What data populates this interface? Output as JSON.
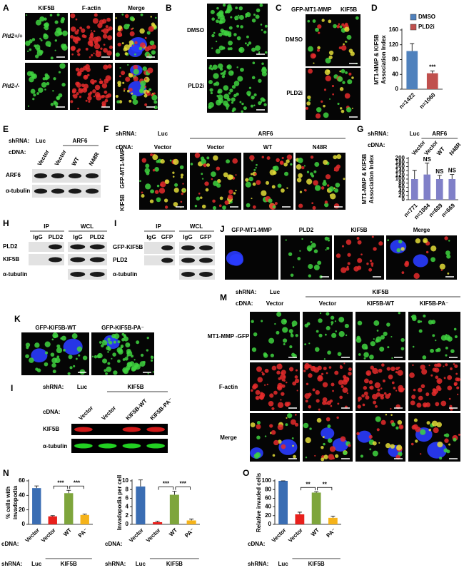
{
  "chart_data": [
    {
      "panel": "D",
      "type": "bar",
      "y_label": [
        "MT1-MMP & KIF5B",
        "Association Index"
      ],
      "categories": [
        "n=1422",
        "n=1060"
      ],
      "values": [
        103,
        43
      ],
      "errors": [
        20,
        6
      ],
      "colors": [
        "#4f81bd",
        "#c0504d"
      ],
      "legend": [
        "DMSO",
        "PLD2i"
      ],
      "ylim": [
        0,
        160
      ],
      "yticks": [
        0,
        40,
        80,
        120,
        160
      ],
      "annotations": [
        {
          "text": "***",
          "bars": [
            1
          ]
        }
      ]
    },
    {
      "panel": "G",
      "type": "bar",
      "y_label": [
        "MT1-MMP & KIF5B",
        "Association Index"
      ],
      "shrna_label": "shRNA:",
      "shrna": [
        "Luc",
        "ARF6"
      ],
      "cdna_label": "cDNA:",
      "cdna": [
        "Vector",
        "Vector",
        "WT",
        "N48R"
      ],
      "categories": [
        "n=771",
        "n=1004",
        "n=689",
        "n=669"
      ],
      "values": [
        100,
        122,
        100,
        100
      ],
      "errors": [
        42,
        55,
        18,
        22
      ],
      "colors": [
        "#8080c8",
        "#8080c8",
        "#8080c8",
        "#8080c8"
      ],
      "ylim": [
        0,
        200
      ],
      "yticks": [
        0,
        20,
        40,
        60,
        80,
        100,
        120,
        140,
        160,
        180,
        200
      ],
      "annotations": [
        {
          "text": "NS",
          "bars": [
            1
          ]
        },
        {
          "text": "NS",
          "bars": [
            2
          ]
        },
        {
          "text": "NS",
          "bars": [
            3
          ]
        }
      ]
    },
    {
      "panel": "N",
      "type": "bar",
      "y_label": [
        "% cells with",
        "invadopodia"
      ],
      "categories": [
        "Vector",
        "Vector",
        "WT",
        "PA⁻"
      ],
      "cdna_label": "cDNA:",
      "shrna_label": "shRNA:",
      "shrna": [
        "Luc",
        "KIF5B"
      ],
      "values": [
        50,
        11,
        43,
        13
      ],
      "errors": [
        3,
        1,
        4,
        1
      ],
      "colors": [
        "#3a6db3",
        "#e8201c",
        "#7ea53c",
        "#f5b31a"
      ],
      "ylim": [
        0,
        60
      ],
      "yticks": [
        0,
        20,
        40,
        60
      ],
      "annotations": [
        {
          "text": "***",
          "bars": [
            1,
            2
          ]
        },
        {
          "text": "***",
          "bars": [
            2,
            3
          ]
        }
      ]
    },
    {
      "type": "bar",
      "y_label": [
        "Invadopodia per cell"
      ],
      "categories": [
        "Vector",
        "Vector",
        "WT",
        "PA⁻"
      ],
      "cdna_label": "cDNA:",
      "shrna_label": "shRNA:",
      "shrna": [
        "Luc",
        "KIF5B"
      ],
      "values": [
        8.7,
        0.5,
        6.8,
        0.9
      ],
      "errors": [
        1.5,
        0.2,
        0.8,
        0.3
      ],
      "colors": [
        "#3a6db3",
        "#e8201c",
        "#7ea53c",
        "#f5b31a"
      ],
      "ylim": [
        0,
        10
      ],
      "yticks": [
        0,
        2,
        4,
        6,
        8,
        10
      ],
      "annotations": [
        {
          "text": "***",
          "bars": [
            1,
            2
          ]
        },
        {
          "text": "***",
          "bars": [
            2,
            3
          ]
        }
      ]
    },
    {
      "panel": "O",
      "type": "bar",
      "y_label": [
        "Relative invaded cells"
      ],
      "categories": [
        "Vector",
        "Vector",
        "WT",
        "PA⁻"
      ],
      "cdna_label": "cDNA:",
      "shrna_label": "shRNA:",
      "shrna": [
        "Luc",
        "KIF5B"
      ],
      "values": [
        100,
        23,
        73,
        15
      ],
      "errors": [
        0,
        5,
        2,
        4
      ],
      "colors": [
        "#3a6db3",
        "#e8201c",
        "#7ea53c",
        "#f5b31a"
      ],
      "ylim": [
        0,
        100
      ],
      "yticks": [
        0,
        20,
        40,
        60,
        80,
        100
      ],
      "annotations": [
        {
          "text": "**",
          "bars": [
            1,
            2
          ]
        },
        {
          "text": "**",
          "bars": [
            2,
            3
          ]
        }
      ]
    }
  ],
  "panels": {
    "A": {
      "label": "A",
      "columns": [
        "KIF5B",
        "F-actin",
        "Merge"
      ],
      "rows": [
        "Pld2+/+",
        "Pld2-/-"
      ]
    },
    "B": {
      "label": "B",
      "rows": [
        "DMSO",
        "PLD2i"
      ]
    },
    "C": {
      "label": "C",
      "channels": [
        "GFP-MT1-MMP",
        "KIF5B"
      ],
      "rows": [
        "DMSO",
        "PLD2i"
      ]
    },
    "E": {
      "label": "E",
      "shrna_label": "shRNA:",
      "shrna": [
        "Luc",
        "ARF6"
      ],
      "cdna_label": "cDNA:",
      "cdna": [
        "Vector",
        "Vector",
        "WT",
        "N48R"
      ],
      "blots": [
        "ARF6",
        "α-tubulin"
      ]
    },
    "F": {
      "label": "F",
      "shrna_label": "shRNA:",
      "shrna": [
        "Luc",
        "ARF6"
      ],
      "cdna_label": "cDNA:",
      "cdna": [
        "Vector",
        "Vector",
        "WT",
        "N48R"
      ],
      "channels": [
        "GFP-MT1-MMP",
        "KIF5B"
      ]
    },
    "H": {
      "label": "H",
      "groups": [
        "IP",
        "WCL"
      ],
      "lanes": [
        "IgG",
        "PLD2",
        "IgG",
        "PLD2"
      ],
      "blots": [
        "PLD2",
        "KIF5B",
        "α-tubulin"
      ]
    },
    "I": {
      "label": "I",
      "groups": [
        "IP",
        "WCL"
      ],
      "lanes": [
        "IgG",
        "GFP",
        "IgG",
        "GFP"
      ],
      "blots": [
        "GFP-KIF5B",
        "PLD2",
        "α-tubulin"
      ]
    },
    "J": {
      "label": "J",
      "channels": [
        "GFP-MT1-MMP",
        "PLD2",
        "KIF5B",
        "Merge"
      ]
    },
    "K": {
      "label": "K",
      "columns": [
        "GFP-KIF5B-WT",
        "GFP-KIF5B-PA⁻"
      ]
    },
    "L": {
      "label": "I",
      "shrna_label": "shRNA:",
      "shrna": [
        "Luc",
        "KIF5B"
      ],
      "cdna_label": "cDNA:",
      "cdna": [
        "Vector",
        "Vector",
        "KIF5B-WT",
        "KIF5B-PA⁻"
      ],
      "blots": [
        "KIF5B",
        "α-tubulin"
      ]
    },
    "M": {
      "label": "M",
      "shrna_label": "shRNA:",
      "shrna": [
        "Luc",
        "KIF5B"
      ],
      "cdna_label": "cDNA:",
      "cdna": [
        "Vector",
        "Vector",
        "KIF5B-WT",
        "KIF5B-PA⁻"
      ],
      "rows": [
        "MT1-MMP -GFP",
        "F-actin",
        "Merge"
      ]
    }
  }
}
